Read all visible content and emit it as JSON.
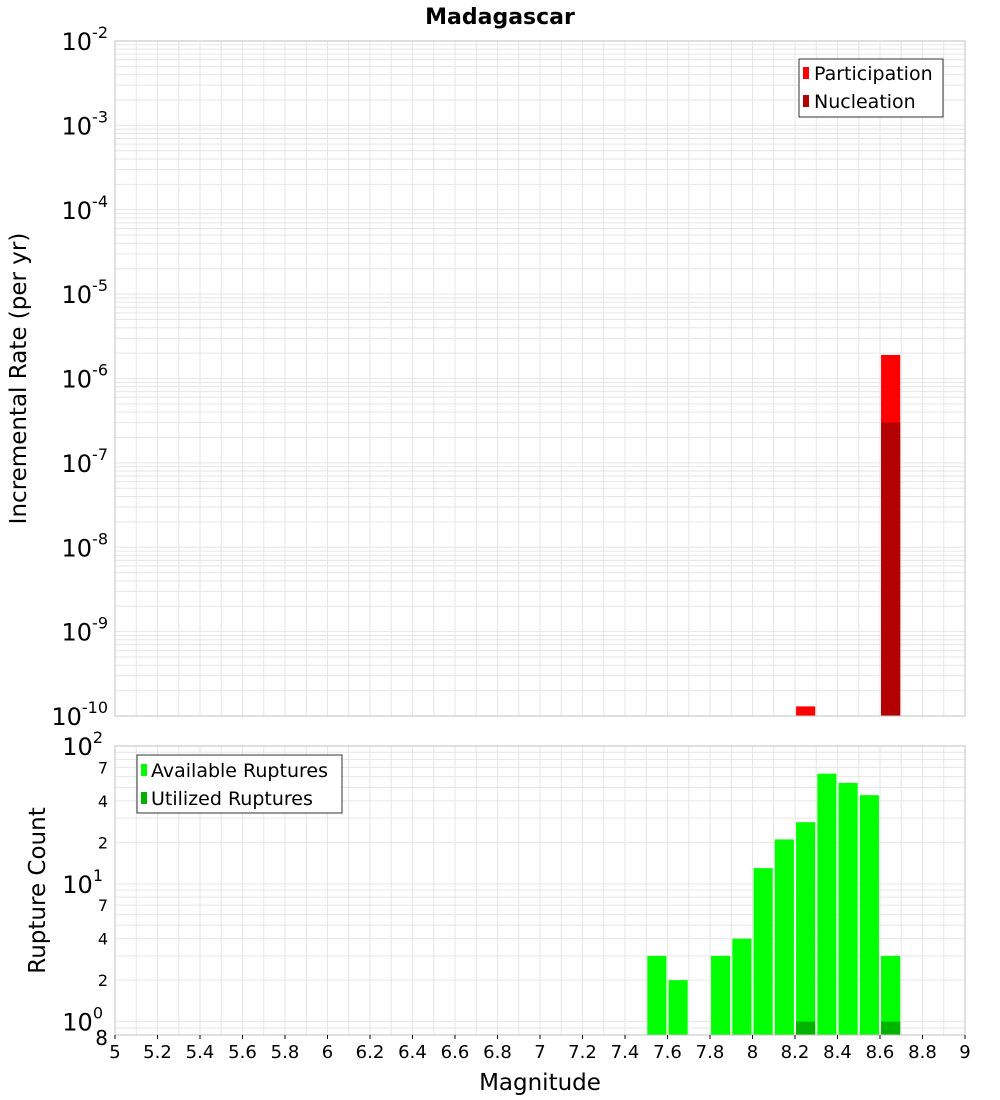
{
  "title": "Madagascar",
  "xlabel": "Magnitude",
  "colors": {
    "participation": "#ff0000",
    "nucleation": "#b30000",
    "available": "#00ff00",
    "utilized": "#00b300",
    "grid": "#e6e6e6",
    "frame": "#c0c0c0"
  },
  "chart_data": [
    {
      "type": "bar",
      "title": "Madagascar",
      "ylabel": "Incremental Rate (per yr)",
      "yscale": "log",
      "ylim": [
        1e-10,
        0.01
      ],
      "xlim": [
        5,
        9
      ],
      "y_tick_labels": [
        {
          "exp": -2,
          "label": "-2"
        },
        {
          "exp": -3,
          "label": "-3"
        },
        {
          "exp": -4,
          "label": "-4"
        },
        {
          "exp": -5,
          "label": "-5"
        },
        {
          "exp": -6,
          "label": "-6"
        },
        {
          "exp": -7,
          "label": "-7"
        },
        {
          "exp": -8,
          "label": "-8"
        },
        {
          "exp": -9,
          "label": "-9"
        },
        {
          "exp": -10,
          "label": "-10"
        }
      ],
      "legend": {
        "position": "top-right",
        "entries": [
          "Participation",
          "Nucleation"
        ]
      },
      "series": [
        {
          "name": "Participation",
          "x": [
            8.25,
            8.65
          ],
          "values": [
            1.3e-10,
            1.9e-06
          ]
        },
        {
          "name": "Nucleation",
          "x": [
            8.25,
            8.65
          ],
          "values": [
            1e-10,
            3e-07
          ]
        }
      ],
      "grid": true
    },
    {
      "type": "bar",
      "ylabel": "Rupture Count",
      "yscale": "log",
      "ylim": [
        0.8,
        100
      ],
      "xlim": [
        5,
        9
      ],
      "x_ticks": [
        "5",
        "5.2",
        "5.4",
        "5.6",
        "5.8",
        "6",
        "6.2",
        "6.4",
        "6.6",
        "6.8",
        "7",
        "7.2",
        "7.4",
        "7.6",
        "7.8",
        "8",
        "8.2",
        "8.4",
        "8.6",
        "8.8",
        "9"
      ],
      "xlabel": "Magnitude",
      "y_major_ticks": [
        {
          "value": 1,
          "base": "10",
          "exp": "0"
        },
        {
          "value": 10,
          "base": "10",
          "exp": "1"
        },
        {
          "value": 100,
          "base": "10",
          "exp": "2"
        }
      ],
      "y_minor_labels": [
        {
          "value": 0.8,
          "label": "8"
        },
        {
          "value": 2,
          "label": "2"
        },
        {
          "value": 4,
          "label": "4"
        },
        {
          "value": 7,
          "label": "7"
        },
        {
          "value": 20,
          "label": "2"
        },
        {
          "value": 40,
          "label": "4"
        },
        {
          "value": 70,
          "label": "7"
        }
      ],
      "legend": {
        "position": "top-left",
        "entries": [
          "Available Ruptures",
          "Utilized Ruptures"
        ]
      },
      "series": [
        {
          "name": "Available Ruptures",
          "x": [
            7.55,
            7.65,
            7.85,
            7.95,
            8.05,
            8.15,
            8.25,
            8.35,
            8.45,
            8.55,
            8.65
          ],
          "values": [
            3,
            2,
            3,
            4,
            13,
            21,
            28,
            63,
            54,
            44,
            3
          ]
        },
        {
          "name": "Utilized Ruptures",
          "x": [
            8.25,
            8.65
          ],
          "values": [
            1,
            1
          ]
        }
      ],
      "grid": true
    }
  ]
}
